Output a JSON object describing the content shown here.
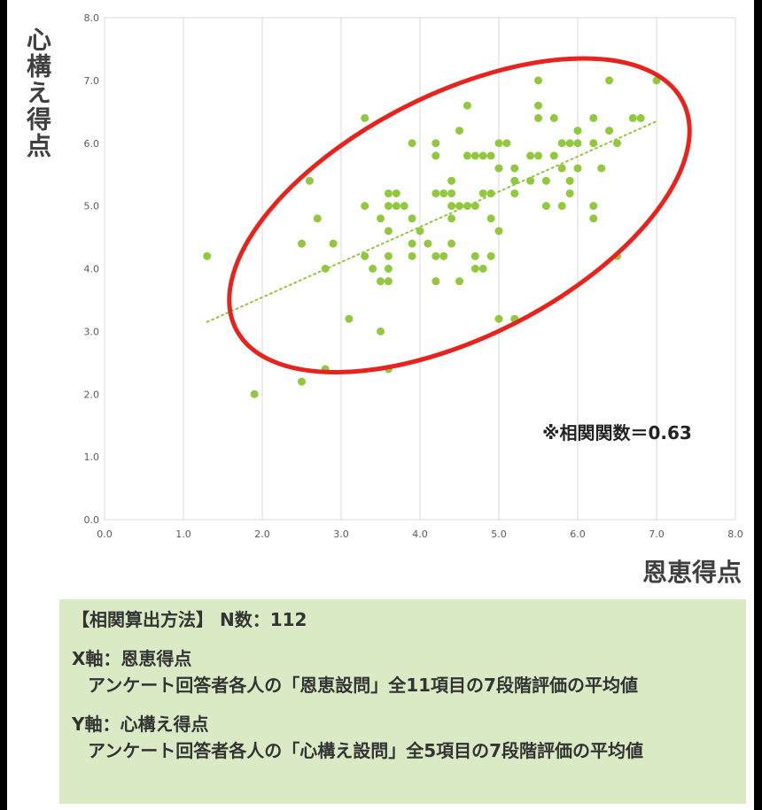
{
  "chart_data": {
    "type": "scatter",
    "title": "",
    "xlabel": "恩恵得点",
    "ylabel": "心構え得点",
    "xlim": [
      0,
      8
    ],
    "ylim": [
      0,
      8
    ],
    "xticks": [
      "0.0",
      "1.0",
      "2.0",
      "3.0",
      "4.0",
      "5.0",
      "6.0",
      "7.0",
      "8.0"
    ],
    "yticks": [
      "0.0",
      "1.0",
      "2.0",
      "3.0",
      "4.0",
      "5.0",
      "6.0",
      "7.0",
      "8.0"
    ],
    "grid": "vertical",
    "annotation": "※相関関数＝0.63",
    "trendline": {
      "style": "dotted-linear",
      "x": [
        1.3,
        7.0
      ],
      "y": [
        3.15,
        6.35
      ]
    },
    "highlight": {
      "shape": "ellipse",
      "color": "#e8221c",
      "center": [
        4.5,
        4.85
      ],
      "note": "red outline around the main cluster"
    },
    "point_color": "#92c83e",
    "points": [
      [
        1.3,
        4.2
      ],
      [
        1.9,
        2.0
      ],
      [
        2.5,
        2.2
      ],
      [
        2.5,
        4.4
      ],
      [
        2.6,
        5.4
      ],
      [
        2.7,
        4.8
      ],
      [
        2.8,
        4.0
      ],
      [
        2.8,
        2.4
      ],
      [
        2.9,
        4.4
      ],
      [
        3.1,
        3.2
      ],
      [
        3.3,
        6.4
      ],
      [
        3.3,
        5.0
      ],
      [
        3.3,
        4.2
      ],
      [
        3.4,
        4.0
      ],
      [
        3.5,
        4.8
      ],
      [
        3.5,
        3.8
      ],
      [
        3.5,
        3.0
      ],
      [
        3.6,
        5.2
      ],
      [
        3.6,
        5.0
      ],
      [
        3.6,
        4.6
      ],
      [
        3.6,
        4.2
      ],
      [
        3.6,
        4.0
      ],
      [
        3.6,
        3.8
      ],
      [
        3.6,
        2.4
      ],
      [
        3.7,
        5.2
      ],
      [
        3.7,
        5.0
      ],
      [
        3.8,
        5.0
      ],
      [
        3.9,
        6.0
      ],
      [
        3.9,
        4.8
      ],
      [
        3.9,
        4.4
      ],
      [
        3.9,
        4.2
      ],
      [
        4.0,
        4.6
      ],
      [
        4.1,
        4.4
      ],
      [
        4.2,
        6.0
      ],
      [
        4.2,
        5.8
      ],
      [
        4.2,
        5.2
      ],
      [
        4.2,
        4.2
      ],
      [
        4.2,
        3.8
      ],
      [
        4.3,
        5.2
      ],
      [
        4.3,
        4.2
      ],
      [
        4.4,
        5.4
      ],
      [
        4.4,
        5.2
      ],
      [
        4.4,
        5.0
      ],
      [
        4.4,
        4.8
      ],
      [
        4.4,
        4.4
      ],
      [
        4.5,
        6.2
      ],
      [
        4.5,
        5.0
      ],
      [
        4.5,
        3.8
      ],
      [
        4.6,
        6.6
      ],
      [
        4.6,
        5.8
      ],
      [
        4.6,
        5.0
      ],
      [
        4.7,
        5.8
      ],
      [
        4.7,
        5.0
      ],
      [
        4.7,
        4.2
      ],
      [
        4.7,
        4.0
      ],
      [
        4.8,
        5.8
      ],
      [
        4.8,
        5.2
      ],
      [
        4.8,
        4.0
      ],
      [
        4.9,
        5.8
      ],
      [
        4.9,
        5.2
      ],
      [
        4.9,
        4.8
      ],
      [
        4.9,
        4.2
      ],
      [
        5.0,
        6.0
      ],
      [
        5.0,
        5.6
      ],
      [
        5.0,
        4.6
      ],
      [
        5.0,
        3.2
      ],
      [
        5.1,
        6.0
      ],
      [
        5.2,
        5.6
      ],
      [
        5.2,
        5.4
      ],
      [
        5.2,
        5.2
      ],
      [
        5.2,
        3.2
      ],
      [
        5.4,
        5.8
      ],
      [
        5.4,
        5.4
      ],
      [
        5.5,
        7.0
      ],
      [
        5.5,
        6.6
      ],
      [
        5.5,
        6.4
      ],
      [
        5.5,
        5.8
      ],
      [
        5.6,
        5.4
      ],
      [
        5.6,
        5.0
      ],
      [
        5.7,
        6.4
      ],
      [
        5.7,
        5.8
      ],
      [
        5.8,
        6.0
      ],
      [
        5.8,
        5.6
      ],
      [
        5.8,
        5.0
      ],
      [
        5.9,
        6.0
      ],
      [
        5.9,
        5.4
      ],
      [
        5.9,
        5.2
      ],
      [
        6.0,
        6.2
      ],
      [
        6.0,
        6.0
      ],
      [
        6.0,
        5.6
      ],
      [
        6.2,
        6.4
      ],
      [
        6.2,
        6.0
      ],
      [
        6.2,
        5.0
      ],
      [
        6.2,
        4.8
      ],
      [
        6.3,
        5.6
      ],
      [
        6.4,
        7.0
      ],
      [
        6.4,
        6.2
      ],
      [
        6.5,
        6.0
      ],
      [
        6.5,
        4.2
      ],
      [
        6.7,
        6.4
      ],
      [
        6.8,
        6.4
      ],
      [
        7.0,
        7.0
      ]
    ]
  },
  "method": {
    "heading": "【相関算出方法】 N数：112",
    "x_title": "X軸：恩恵得点",
    "x_desc": "アンケート回答者各人の「恩恵設問」全11項目の7段階評価の平均値",
    "y_title": "Y軸：心構え得点",
    "y_desc": "アンケート回答者各人の「心構え設問」全5項目の7段階評価の平均値"
  }
}
